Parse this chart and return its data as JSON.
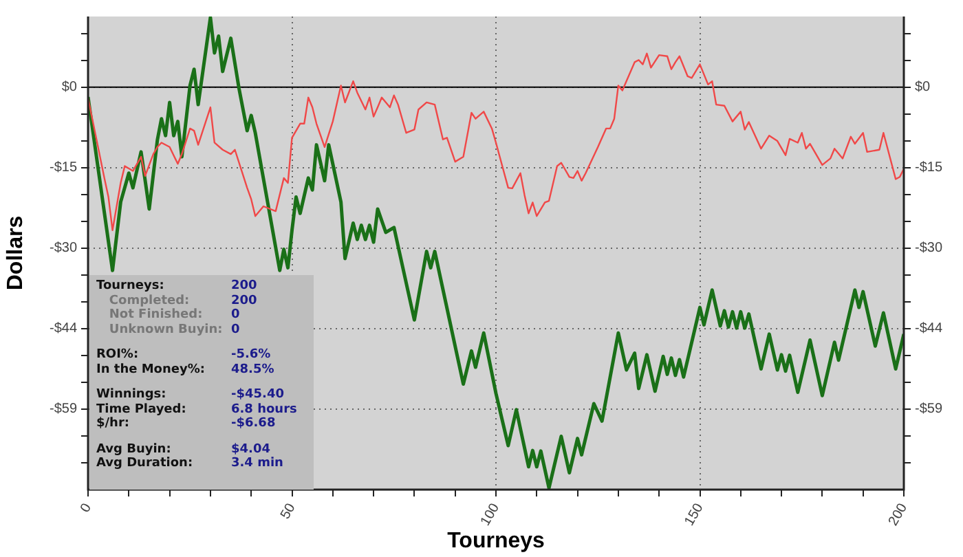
{
  "chart_data": {
    "type": "line",
    "xlabel": "Tourneys",
    "ylabel": "Dollars",
    "marker": "none",
    "grid": true,
    "legend": false,
    "xlim": [
      0,
      200
    ],
    "xticks": [
      0,
      {
        "value": 10,
        "label": null
      },
      {
        "value": 20,
        "label": null
      },
      {
        "value": 30,
        "label": null
      },
      {
        "value": 40,
        "label": null
      },
      50,
      {
        "value": 60,
        "label": null
      },
      {
        "value": 70,
        "label": null
      },
      {
        "value": 80,
        "label": null
      },
      {
        "value": 90,
        "label": null
      },
      100,
      {
        "value": 110,
        "label": null
      },
      {
        "value": 120,
        "label": null
      },
      {
        "value": 130,
        "label": null
      },
      {
        "value": 140,
        "label": null
      },
      150,
      {
        "value": 160,
        "label": null
      },
      {
        "value": 170,
        "label": null
      },
      {
        "value": 180,
        "label": null
      },
      {
        "value": 190,
        "label": null
      },
      200
    ],
    "ylim": [
      -74,
      13
    ],
    "yticks": [
      {
        "value": 9.87,
        "label": null
      },
      {
        "value": 4.93,
        "label": null
      },
      {
        "value": 0,
        "label": "$0"
      },
      {
        "value": -4.93,
        "label": null
      },
      {
        "value": -9.87,
        "label": null
      },
      {
        "value": -14.8,
        "label": "-$15"
      },
      {
        "value": -19.73,
        "label": null
      },
      {
        "value": -24.67,
        "label": null
      },
      {
        "value": -29.6,
        "label": "-$30"
      },
      {
        "value": -34.53,
        "label": null
      },
      {
        "value": -39.47,
        "label": null
      },
      {
        "value": -44.4,
        "label": "-$44"
      },
      {
        "value": -49.33,
        "label": null
      },
      {
        "value": -54.27,
        "label": null
      },
      {
        "value": -59.2,
        "label": "-$59"
      },
      {
        "value": -64.13,
        "label": null
      },
      {
        "value": -69.07,
        "label": null
      }
    ],
    "y2lim": [
      -74,
      13
    ],
    "y2ticks": [
      {
        "value": 9.87,
        "label": null
      },
      {
        "value": 4.93,
        "label": null
      },
      {
        "value": 0,
        "label": "$0"
      },
      {
        "value": -4.93,
        "label": null
      },
      {
        "value": -9.87,
        "label": null
      },
      {
        "value": -14.8,
        "label": "-$15"
      },
      {
        "value": -19.73,
        "label": null
      },
      {
        "value": -24.67,
        "label": null
      },
      {
        "value": -29.6,
        "label": "-$30"
      },
      {
        "value": -34.53,
        "label": null
      },
      {
        "value": -39.47,
        "label": null
      },
      {
        "value": -44.4,
        "label": "-$44"
      },
      {
        "value": -49.33,
        "label": null
      },
      {
        "value": -54.27,
        "label": null
      },
      {
        "value": -59.2,
        "label": "-$59"
      },
      {
        "value": -64.13,
        "label": null
      },
      {
        "value": -69.07,
        "label": null
      }
    ],
    "ref_lines": [
      {
        "axis": "y",
        "value": 0,
        "color": "#000000"
      }
    ],
    "annotations": [
      "Tourneys: 200\n   Completed: 200\n   Not Finished: 0\n   Unknown Buyin: 0",
      "ROI%: -5.6%\nIn the Money%: 48.5%",
      "Winnings: -$45.40\nTime Played: 6.8 hours\n$/hr: -$6.68",
      "Avg Buyin: $4.04\nAvg Duration: 3.4 min"
    ],
    "series": [
      {
        "color": "#f04848",
        "x": [
          0,
          4,
          5,
          6,
          8,
          9,
          11,
          13,
          14,
          16,
          17,
          18,
          20,
          22,
          23,
          25,
          26,
          27,
          30,
          31,
          33,
          35,
          36,
          39,
          40,
          41,
          43,
          46,
          48,
          49,
          50,
          52,
          53,
          54,
          55,
          56,
          58,
          60,
          62,
          63,
          65,
          66,
          68,
          69,
          70,
          71,
          72,
          74,
          75,
          76,
          78,
          80,
          81,
          83,
          85,
          87,
          88,
          90,
          92,
          94,
          95,
          97,
          99,
          100,
          103,
          104,
          106,
          107,
          108,
          109,
          110,
          112,
          113,
          115,
          116,
          118,
          119,
          120,
          121,
          122,
          125,
          127,
          128,
          129,
          130,
          131,
          134,
          135,
          136,
          137,
          138,
          140,
          142,
          143,
          144,
          145,
          147,
          148,
          150,
          152,
          153,
          154,
          156,
          158,
          160,
          161,
          162,
          165,
          167,
          169,
          171,
          172,
          174,
          175,
          176,
          177,
          180,
          182,
          183,
          185,
          187,
          188,
          190,
          191,
          194,
          195,
          198,
          199,
          200
        ],
        "values": [
          -2.0,
          -16.7,
          -20.2,
          -26.3,
          -17.6,
          -14.5,
          -15.4,
          -12.8,
          -16.3,
          -12.3,
          -11.0,
          -10.2,
          -11.0,
          -14.1,
          -12.3,
          -7.6,
          -8.0,
          -10.6,
          -3.7,
          -10.2,
          -11.5,
          -12.3,
          -11.5,
          -18.5,
          -20.6,
          -23.7,
          -21.9,
          -22.8,
          -16.7,
          -17.6,
          -9.3,
          -6.7,
          -6.7,
          -1.9,
          -3.7,
          -6.7,
          -11.0,
          -6.3,
          0.3,
          -2.8,
          1.1,
          -1.0,
          -4.1,
          -1.9,
          -5.4,
          -3.7,
          -1.9,
          -3.7,
          -1.5,
          -3.2,
          -8.4,
          -7.8,
          -4.1,
          -2.8,
          -3.2,
          -9.6,
          -9.3,
          -13.7,
          -12.8,
          -4.7,
          -5.8,
          -4.5,
          -7.6,
          -10.2,
          -18.5,
          -18.6,
          -15.8,
          -19.8,
          -23.2,
          -21.2,
          -23.7,
          -21.2,
          -20.9,
          -14.5,
          -13.9,
          -16.5,
          -16.7,
          -15.4,
          -17.2,
          -15.8,
          -11.0,
          -7.6,
          -7.6,
          -5.8,
          0.3,
          -0.6,
          4.6,
          5.0,
          4.2,
          6.2,
          3.6,
          5.9,
          5.7,
          3.3,
          4.6,
          5.7,
          2.0,
          1.7,
          4.2,
          0.5,
          1.1,
          -3.2,
          -3.4,
          -6.3,
          -4.5,
          -7.8,
          -6.4,
          -11.3,
          -8.9,
          -9.9,
          -12.5,
          -9.5,
          -10.2,
          -8.4,
          -11.3,
          -10.4,
          -14.3,
          -13.1,
          -11.3,
          -13.1,
          -9.1,
          -10.4,
          -8.4,
          -11.9,
          -11.5,
          -8.4,
          -16.9,
          -16.5,
          -15.0
        ]
      },
      {
        "color": "#1a7018",
        "x": [
          0,
          6,
          8,
          10,
          11,
          13,
          15,
          17,
          18,
          19,
          20,
          21,
          22,
          23,
          25,
          26,
          27,
          30,
          31,
          32,
          33,
          35,
          37,
          39,
          40,
          41,
          47,
          48,
          49,
          50,
          51,
          52,
          54,
          55,
          56,
          58,
          59,
          62,
          63,
          65,
          66,
          67,
          68,
          69,
          70,
          71,
          73,
          75,
          80,
          83,
          84,
          85,
          92,
          94,
          95,
          97,
          100,
          103,
          105,
          108,
          109,
          110,
          111,
          113,
          116,
          118,
          120,
          121,
          124,
          126,
          130,
          132,
          134,
          135,
          137,
          139,
          141,
          142,
          143,
          144,
          145,
          146,
          150,
          151,
          153,
          155,
          156,
          157,
          158,
          159,
          160,
          161,
          162,
          165,
          167,
          169,
          170,
          171,
          172,
          174,
          177,
          180,
          183,
          184,
          188,
          189,
          190,
          193,
          195,
          198,
          200
        ],
        "values": [
          -1.8,
          -33.7,
          -21.1,
          -15.8,
          -18.5,
          -11.9,
          -22.4,
          -9.7,
          -5.8,
          -8.9,
          -2.8,
          -8.9,
          -6.3,
          -12.8,
          0.3,
          3.3,
          -3.2,
          12.8,
          6.3,
          9.4,
          2.9,
          9.0,
          -0.2,
          -8.0,
          -5.2,
          -8.4,
          -33.7,
          -29.8,
          -33.2,
          -26.3,
          -20.2,
          -23.2,
          -16.7,
          -18.9,
          -10.6,
          -17.2,
          -10.6,
          -21.1,
          -31.5,
          -25.0,
          -28.0,
          -25.4,
          -28.0,
          -25.4,
          -28.5,
          -22.4,
          -26.7,
          -25.8,
          -42.8,
          -30.2,
          -33.2,
          -30.2,
          -54.6,
          -48.5,
          -51.5,
          -45.2,
          -56.3,
          -65.9,
          -59.3,
          -69.8,
          -66.8,
          -69.8,
          -66.9,
          -73.7,
          -64.2,
          -70.9,
          -64.6,
          -67.6,
          -58.2,
          -61.4,
          -45.2,
          -52.0,
          -48.9,
          -55.4,
          -49.2,
          -55.9,
          -49.5,
          -52.8,
          -49.8,
          -53.0,
          -50.1,
          -53.3,
          -40.5,
          -43.7,
          -37.3,
          -43.9,
          -41.1,
          -44.1,
          -41.3,
          -44.3,
          -41.3,
          -44.3,
          -41.7,
          -51.8,
          -45.4,
          -52.0,
          -49.2,
          -52.2,
          -49.3,
          -56.1,
          -46.5,
          -56.7,
          -46.9,
          -50.2,
          -37.3,
          -40.5,
          -37.6,
          -47.6,
          -41.5,
          -51.8,
          -45.4
        ]
      }
    ]
  }
}
